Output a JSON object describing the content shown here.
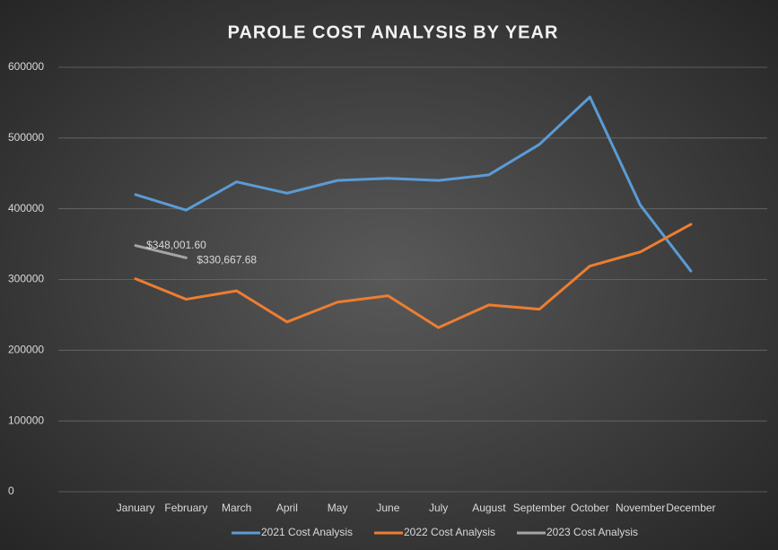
{
  "chart_data": {
    "type": "line",
    "title": "PAROLE COST ANALYSIS BY YEAR",
    "categories": [
      "January",
      "February",
      "March",
      "April",
      "May",
      "June",
      "July",
      "August",
      "September",
      "October",
      "November",
      "December"
    ],
    "series": [
      {
        "name": "2021 Cost Analysis",
        "color": "#5b9bd5",
        "values": [
          420000,
          398000,
          438000,
          422000,
          440000,
          443000,
          440000,
          448000,
          491000,
          558000,
          405000,
          312000
        ]
      },
      {
        "name": "2022 Cost Analysis",
        "color": "#ed7d31",
        "values": [
          301000,
          272000,
          284000,
          240000,
          268000,
          277000,
          232000,
          264000,
          258000,
          319000,
          339000,
          378000
        ]
      },
      {
        "name": "2023 Cost Analysis",
        "color": "#a5a5a5",
        "values": [
          348001.6,
          330667.68,
          null,
          null,
          null,
          null,
          null,
          null,
          null,
          null,
          null,
          null
        ],
        "value_labels": [
          "$348,001.60",
          "$330,667.68",
          null,
          null,
          null,
          null,
          null,
          null,
          null,
          null,
          null,
          null
        ]
      }
    ],
    "ylim": [
      0,
      600000
    ],
    "yticks": [
      0,
      100000,
      200000,
      300000,
      400000,
      500000,
      600000
    ],
    "grid": true
  }
}
